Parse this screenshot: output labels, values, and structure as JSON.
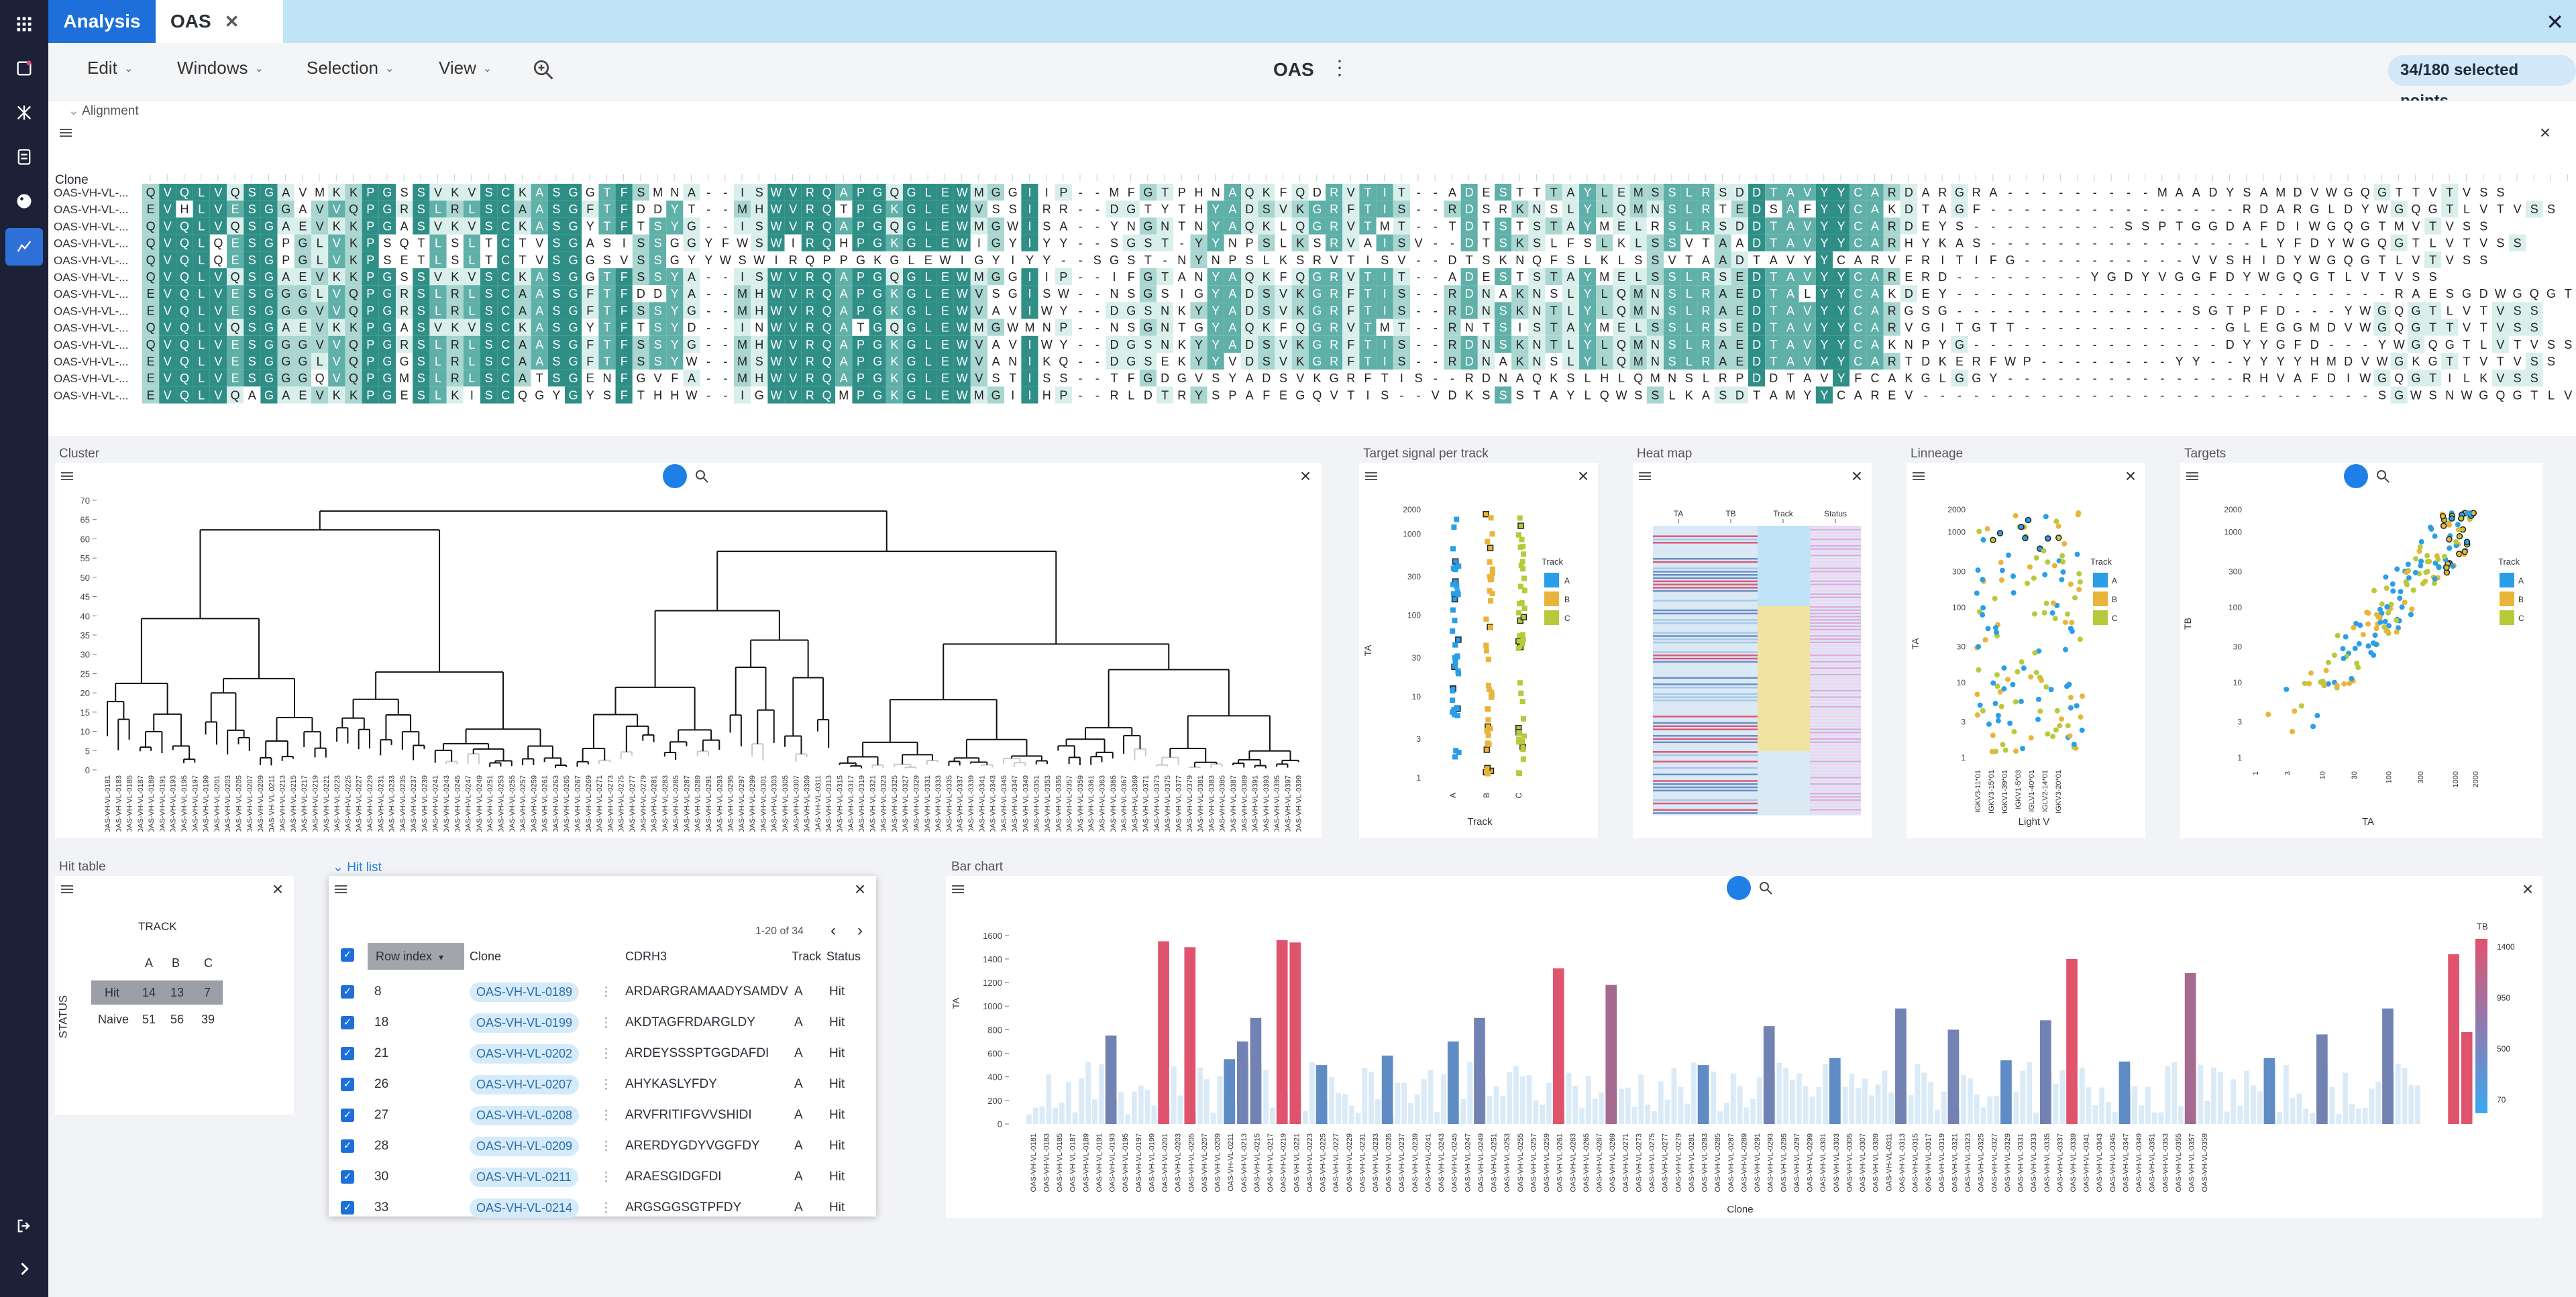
{
  "app": {
    "tab_analysis": "Analysis",
    "tab_oas": "OAS",
    "title": "OAS",
    "selection": "34/180 selected points"
  },
  "menu": [
    "Edit",
    "Windows",
    "Selection",
    "View"
  ],
  "alignment": {
    "title": "Alignment",
    "header": "Clone",
    "rows": [
      {
        "name": "OAS-VH-VL-...",
        "seq": "QVQLVQSGAVMKKPGSSVKVSCKASGGTFSMNA--ISWVRQAPGQGLEWMGGIIP--MFGTPHNAQKFQDRVTIT--ADESTTTAYLEMSSLRSDDTAVYYCARDARGRA---------MAADYSAMDVWGQGTTVTVSS"
      },
      {
        "name": "OAS-VH-VL-...",
        "seq": "EVHLVESGGAVVQPGRSLRLSCAASGFTFDDYT--MHWVRQTPGKGLEWVSSIRR--DGTYTHYADSVKGRFTIS--RDSRKNSLYLQMNSLRTEDSAFYYCAKDTAGF---------------RDARGLDYWGQGTLVTVSS"
      },
      {
        "name": "OAS-VH-VL-...",
        "seq": "QVQLVQSGAEVKKPGASVKVSCKASGYTFTSYG--ISWVRQAPGQGLEWMGWISA--YNGNTNYAQKLQGRVTMT--TDTSTSTAYMELRSLRSDDTAVYYCARDEYS---------SSPTGGDAFDIWGQGTMVTVSS"
      },
      {
        "name": "OAS-VH-VL-...",
        "seq": "QVQLQESGPGLVKPSQTLSLTCTVSGASISSGGYFWSWIRQHPGKGLEWIGYIYY--SGST-YYNPSLKSRVAISV--DTSKSLFSLKLSSVTAADTAVYYCARHYKAS----------------LYFDYWGQGTLVTVSS"
      },
      {
        "name": "OAS-VH-VL-...",
        "seq": "QVQLQESGPGLVKPSETLSLTCTVSGGSVSSGYYWSWIRQPPGKGLEWIGYIYY--SGST-NYNPSLKSRVTISV--DTSKNQFSLKLSSVTAADTAVYYCARVFRITIFG----------VVSHIDYWGQGTLVTVSS"
      },
      {
        "name": "OAS-VH-VL-...",
        "seq": "QVQLVQSGAEVKKPGSSVKVSCKASGGTFSSYA--ISWVRQAPGQGLEWMGGIIP--IFGTANYAQKFQGRVTIT--ADESTSTAYMELSSLRSEDTAVYYCARERD--------YGDYVGGFDYWGQGTLVTVSS"
      },
      {
        "name": "OAS-VH-VL-...",
        "seq": "EVQLVESGGGLVQPGRSLRLSCAASGFTFDDYA--MHWVRQAPGKGLEWVSGISW--NSGSIGYADSVKGRFTIS--RDNAKNSLYLQMNSLRAEDTALYYCAKDEY--------------------------RAESGDWGQGTLVTVSS"
      },
      {
        "name": "OAS-VH-VL-...",
        "seq": "EVQLVESGGGVVQPGRSLRLSCAASGFTFSSYG--MHWVRQAPGKGLEWVAVIWY--DGSNKYYADSVKGRFTIS--RDNSKNTLYLQMNSLRAEDTAVYYCARGSG--------------SGTPFD---YWGQGTLVTVSS"
      },
      {
        "name": "OAS-VH-VL-...",
        "seq": "QVQLVQSGAEVKKPGASVKVSCKASGYTFTSYD--INWVRQATGQGLEWMGWMNP--NSGNTGYAQKFQGRVTMT--RNTSISTAYMELSSLRSEDTAVYYCARVGITGTT------------GLEGGMDVWGQGTTVTVSS"
      },
      {
        "name": "OAS-VH-VL-...",
        "seq": "QVQLVESGGGVVQPGRSLRLSCAASGFTFSSYG--MHWVRQAPGKGLEWVAVIWY--DGSNKYYADSVKGRFTIS--RDNSKNTLYLQMNSLRAEDTAVYYCAKNPYG---------------DYYGFD---YWGQGTLVTVSS"
      },
      {
        "name": "OAS-VH-VL-...",
        "seq": "EVQLVESGGGLVQPGGSLRLSCAASGFTFSSYW--MSWVRQAPGKGLEWVANIKQ--DGSEKYYVDSVKGRFTIS--RDNAKNSLYLQMNSLRAEDTAVYYCARTDKERFWP--------YY--YYYYHMDVWGKGTTVTVSS"
      },
      {
        "name": "OAS-VH-VL-...",
        "seq": "EVQLVESGGGQVQPGMSLRLSCATSGENFGVFA--MHWVRQAPGKGLEWVSTISS--TFGDGVSYADSVKGRFTIS--RDNAQKSLHLQMNSLRPDDTAVYFCAKGLGGY--------------RHVAFDIWGQGTILKVSS"
      },
      {
        "name": "OAS-VH-VL-...",
        "seq": "EVQLVQAGAEVKKPGESLKISCQGYGYSFTHHW--IGWVRQMPGKGLEWMGIIHP--RLDTRYSPAFEGQVTIS--VDKSSSTAYLQWSSLKASDTAMYYCAREV---------------------------SGWSNWGQGTLVSVSS"
      }
    ]
  },
  "cluster": {
    "title": "Cluster",
    "yticks": [
      "70",
      "65",
      "60",
      "55",
      "50",
      "45",
      "40",
      "35",
      "30",
      "25",
      "20",
      "15",
      "10",
      "5",
      "0"
    ]
  },
  "target_signal": {
    "title": "Target signal per track",
    "ylabel": "TA",
    "xlabel": "Track",
    "legend_title": "Track",
    "legend": [
      "A",
      "B",
      "C"
    ],
    "xcats": [
      "A",
      "B",
      "C"
    ],
    "yticks": [
      "2000",
      "1000",
      "300",
      "100",
      "30",
      "10",
      "3",
      "1"
    ]
  },
  "heatmap": {
    "title": "Heat map",
    "columns": [
      "TA",
      "TB",
      "Track",
      "Status"
    ]
  },
  "lineage": {
    "title": "Linneage",
    "ylabel": "TA",
    "xlabel": "Light V",
    "legend_title": "Track",
    "legend": [
      "A",
      "B",
      "C"
    ],
    "yticks": [
      "2000",
      "1000",
      "300",
      "100",
      "30",
      "10",
      "3",
      "1"
    ],
    "xcats": [
      "IGKV3-11*01",
      "IGKV3-15*01",
      "IGKV1-39*01",
      "IGKV1-5*03",
      "IGLV1-40*01",
      "IGLV2-14*01",
      "IGKV3-20*01"
    ]
  },
  "targets": {
    "title": "Targets",
    "ylabel": "TB",
    "xlabel": "TA",
    "legend_title": "Track",
    "legend": [
      "A",
      "B",
      "C"
    ],
    "yticks": [
      "2000",
      "1000",
      "300",
      "100",
      "30",
      "10",
      "3",
      "1"
    ],
    "xticks": [
      "1",
      "3",
      "10",
      "30",
      "100",
      "300",
      "1000",
      "2000"
    ]
  },
  "hit_table": {
    "title": "Hit table",
    "track_label": "TRACK",
    "status_label": "STATUS",
    "cols": [
      "A",
      "B",
      "C"
    ],
    "rows": [
      {
        "label": "Hit",
        "values": [
          "14",
          "13",
          "7"
        ]
      },
      {
        "label": "Naive",
        "values": [
          "51",
          "56",
          "39"
        ]
      }
    ]
  },
  "hit_list": {
    "title": "Hit list",
    "pager": "1-20 of 34",
    "columns": [
      "Row index",
      "Clone",
      "CDRH3",
      "Track",
      "Status"
    ],
    "rows": [
      {
        "idx": "8",
        "clone": "OAS-VH-VL-0189",
        "cdrh3": "ARDARGRAMAADYSAMDV",
        "track": "A",
        "status": "Hit"
      },
      {
        "idx": "18",
        "clone": "OAS-VH-VL-0199",
        "cdrh3": "AKDTAGFRDARGLDY",
        "track": "A",
        "status": "Hit"
      },
      {
        "idx": "21",
        "clone": "OAS-VH-VL-0202",
        "cdrh3": "ARDEYSSSPTGGDAFDI",
        "track": "A",
        "status": "Hit"
      },
      {
        "idx": "26",
        "clone": "OAS-VH-VL-0207",
        "cdrh3": "AHYKASLYFDY",
        "track": "A",
        "status": "Hit"
      },
      {
        "idx": "27",
        "clone": "OAS-VH-VL-0208",
        "cdrh3": "ARVFRITIFGVVSHIDI",
        "track": "A",
        "status": "Hit"
      },
      {
        "idx": "28",
        "clone": "OAS-VH-VL-0209",
        "cdrh3": "ARERDYGDYVGGFDY",
        "track": "A",
        "status": "Hit"
      },
      {
        "idx": "30",
        "clone": "OAS-VH-VL-0211",
        "cdrh3": "ARAESGIDGFDI",
        "track": "A",
        "status": "Hit"
      },
      {
        "idx": "33",
        "clone": "OAS-VH-VL-0214",
        "cdrh3": "ARGSGGSGTPFDY",
        "track": "A",
        "status": "Hit"
      }
    ]
  },
  "bar_chart": {
    "title": "Bar chart",
    "ylabel": "TA",
    "xlabel": "Clone",
    "legend_title": "TB",
    "legend_ticks": [
      "1400",
      "950",
      "500",
      "70"
    ],
    "yticks": [
      "1600",
      "1400",
      "1200",
      "1000",
      "800",
      "600",
      "400",
      "200",
      "0"
    ]
  },
  "chart_data": {
    "type": "bar",
    "title": "Bar chart",
    "xlabel": "Clone",
    "ylabel": "TA",
    "ylim": [
      0,
      1650
    ],
    "color_by": "TB",
    "categories": [
      "OAS-VH-VL-0181",
      "OAS-VH-VL-0183",
      "OAS-VH-VL-0185",
      "OAS-VH-VL-0187",
      "OAS-VH-VL-0189",
      "OAS-VH-VL-0191",
      "OAS-VH-VL-0193",
      "OAS-VH-VL-0195",
      "OAS-VH-VL-0197",
      "OAS-VH-VL-0199",
      "OAS-VH-VL-0201",
      "OAS-VH-VL-0203",
      "OAS-VH-VL-0205",
      "OAS-VH-VL-0207",
      "OAS-VH-VL-0209",
      "OAS-VH-VL-0211",
      "OAS-VH-VL-0213",
      "OAS-VH-VL-0215",
      "OAS-VH-VL-0217",
      "OAS-VH-VL-0219",
      "OAS-VH-VL-0221",
      "OAS-VH-VL-0223",
      "OAS-VH-VL-0225",
      "OAS-VH-VL-0227",
      "OAS-VH-VL-0229",
      "OAS-VH-VL-0231",
      "OAS-VH-VL-0233",
      "OAS-VH-VL-0235",
      "OAS-VH-VL-0237",
      "OAS-VH-VL-0239",
      "OAS-VH-VL-0241",
      "OAS-VH-VL-0243",
      "OAS-VH-VL-0245",
      "OAS-VH-VL-0247",
      "OAS-VH-VL-0249",
      "OAS-VH-VL-0251",
      "OAS-VH-VL-0253",
      "OAS-VH-VL-0255",
      "OAS-VH-VL-0257",
      "OAS-VH-VL-0259",
      "OAS-VH-VL-0261",
      "OAS-VH-VL-0263",
      "OAS-VH-VL-0265",
      "OAS-VH-VL-0267",
      "OAS-VH-VL-0269",
      "OAS-VH-VL-0271",
      "OAS-VH-VL-0273",
      "OAS-VH-VL-0275",
      "OAS-VH-VL-0277",
      "OAS-VH-VL-0279",
      "OAS-VH-VL-0281",
      "OAS-VH-VL-0283",
      "OAS-VH-VL-0285",
      "OAS-VH-VL-0287",
      "OAS-VH-VL-0289",
      "OAS-VH-VL-0291",
      "OAS-VH-VL-0293",
      "OAS-VH-VL-0295",
      "OAS-VH-VL-0297",
      "OAS-VH-VL-0299",
      "OAS-VH-VL-0301",
      "OAS-VH-VL-0303",
      "OAS-VH-VL-0305",
      "OAS-VH-VL-0307",
      "OAS-VH-VL-0309",
      "OAS-VH-VL-0311",
      "OAS-VH-VL-0313",
      "OAS-VH-VL-0315",
      "OAS-VH-VL-0317",
      "OAS-VH-VL-0319",
      "OAS-VH-VL-0321",
      "OAS-VH-VL-0323",
      "OAS-VH-VL-0325",
      "OAS-VH-VL-0327",
      "OAS-VH-VL-0329",
      "OAS-VH-VL-0331",
      "OAS-VH-VL-0333",
      "OAS-VH-VL-0335",
      "OAS-VH-VL-0337",
      "OAS-VH-VL-0339",
      "OAS-VH-VL-0341",
      "OAS-VH-VL-0343",
      "OAS-VH-VL-0345",
      "OAS-VH-VL-0347",
      "OAS-VH-VL-0349",
      "OAS-VH-VL-0351",
      "OAS-VH-VL-0353",
      "OAS-VH-VL-0355",
      "OAS-VH-VL-0357",
      "OAS-VH-VL-0359"
    ],
    "highlighted": [
      {
        "i": 6,
        "value": 750,
        "tb": 600
      },
      {
        "i": 10,
        "value": 1550,
        "tb": 1400
      },
      {
        "i": 12,
        "value": 1500,
        "tb": 1400
      },
      {
        "i": 15,
        "value": 550,
        "tb": 500
      },
      {
        "i": 16,
        "value": 700,
        "tb": 600
      },
      {
        "i": 17,
        "value": 900,
        "tb": 700
      },
      {
        "i": 19,
        "value": 1560,
        "tb": 1400
      },
      {
        "i": 20,
        "value": 1540,
        "tb": 1400
      },
      {
        "i": 22,
        "value": 500,
        "tb": 400
      },
      {
        "i": 27,
        "value": 580,
        "tb": 500
      },
      {
        "i": 32,
        "value": 700,
        "tb": 550
      },
      {
        "i": 34,
        "value": 900,
        "tb": 600
      },
      {
        "i": 40,
        "value": 1320,
        "tb": 1300
      },
      {
        "i": 44,
        "value": 1180,
        "tb": 1100
      },
      {
        "i": 51,
        "value": 500,
        "tb": 450
      },
      {
        "i": 56,
        "value": 830,
        "tb": 700
      },
      {
        "i": 61,
        "value": 560,
        "tb": 500
      },
      {
        "i": 66,
        "value": 980,
        "tb": 700
      },
      {
        "i": 70,
        "value": 800,
        "tb": 650
      },
      {
        "i": 74,
        "value": 540,
        "tb": 500
      },
      {
        "i": 77,
        "value": 880,
        "tb": 600
      },
      {
        "i": 79,
        "value": 1400,
        "tb": 1300
      },
      {
        "i": 83,
        "value": 530,
        "tb": 500
      },
      {
        "i": 88,
        "value": 1280,
        "tb": 1100
      },
      {
        "i": 94,
        "value": 560,
        "tb": 500
      },
      {
        "i": 98,
        "value": 760,
        "tb": 600
      },
      {
        "i": 103,
        "value": 980,
        "tb": 600
      },
      {
        "i": 108,
        "value": 1440,
        "tb": 1400
      },
      {
        "i": 109,
        "value": 780,
        "tb": 1200
      }
    ]
  }
}
